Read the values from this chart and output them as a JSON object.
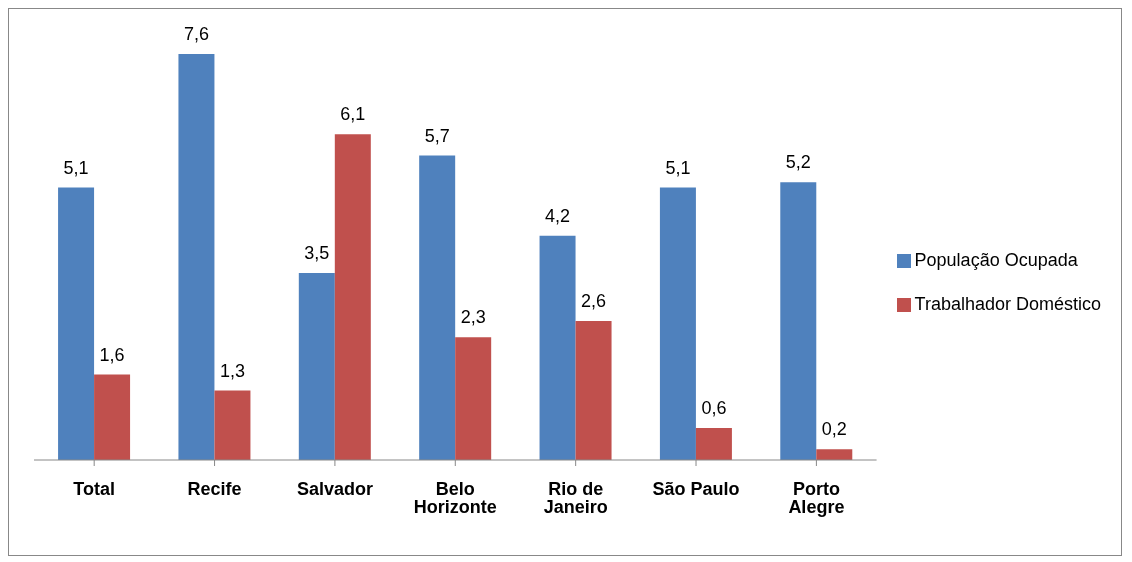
{
  "chart_data": {
    "type": "bar",
    "categories": [
      "Total",
      "Recife",
      "Salvador",
      "Belo Horizonte",
      "Rio de Janeiro",
      "São Paulo",
      "Porto Alegre"
    ],
    "series": [
      {
        "name": "População Ocupada",
        "color": "#4f81bd",
        "values": [
          5.1,
          7.6,
          3.5,
          5.7,
          4.2,
          5.1,
          5.2
        ],
        "value_labels": [
          "5,1",
          "7,6",
          "3,5",
          "5,7",
          "4,2",
          "5,1",
          "5,2"
        ]
      },
      {
        "name": "Trabalhador Doméstico",
        "color": "#c0504d",
        "values": [
          1.6,
          1.3,
          6.1,
          2.3,
          2.6,
          0.6,
          0.2
        ],
        "value_labels": [
          "1,6",
          "1,3",
          "6,1",
          "2,3",
          "2,6",
          "0,6",
          "0,2"
        ]
      }
    ],
    "legend": "right",
    "tick_labels": "x"
  }
}
